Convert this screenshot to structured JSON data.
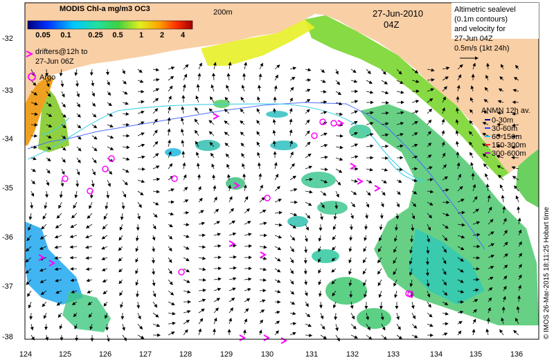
{
  "colorbar": {
    "title": "MODIS Chl-a mg/m3 OC3",
    "ticks": [
      "0.05",
      "0.1",
      "0.25",
      "0.5",
      "1",
      "2",
      "4"
    ]
  },
  "date": "27-Jun-2010",
  "time": "04Z",
  "isobath_label": "200m",
  "drifters_label": [
    "drifters@12h to",
    "27-Jun 06Z"
  ],
  "argo_label": "Argo",
  "altimetry_note": [
    "Altimetric sealevel",
    "(0.1m contours)",
    "and velocity for",
    "27-Jun 04Z",
    "0.5m/s (1kt 24h)"
  ],
  "anmn": {
    "title": "ANMN 12h av.",
    "items": [
      {
        "label": "0-30m",
        "color": "#000080"
      },
      {
        "label": "30-60m",
        "color": "#1f3fff"
      },
      {
        "label": "60-150m",
        "color": "#00c8ff"
      },
      {
        "label": "150-300m",
        "color": "#ff2020"
      },
      {
        "label": "300-600m",
        "color": "#cc00cc"
      }
    ]
  },
  "credit": "© IMOS 26-Mar-2015 18:11:25 Hobart time",
  "lat_labels": [
    "-32",
    "-33",
    "-34",
    "-35",
    "-36",
    "-37",
    "-38"
  ],
  "lon_labels": [
    "124",
    "125",
    "126",
    "127",
    "128",
    "129",
    "130",
    "131",
    "132",
    "133",
    "134",
    "135",
    "136"
  ],
  "colors": {
    "land": "#f9cfa6",
    "drifter": "#ff00ff",
    "contour": "#3fd0e8"
  }
}
